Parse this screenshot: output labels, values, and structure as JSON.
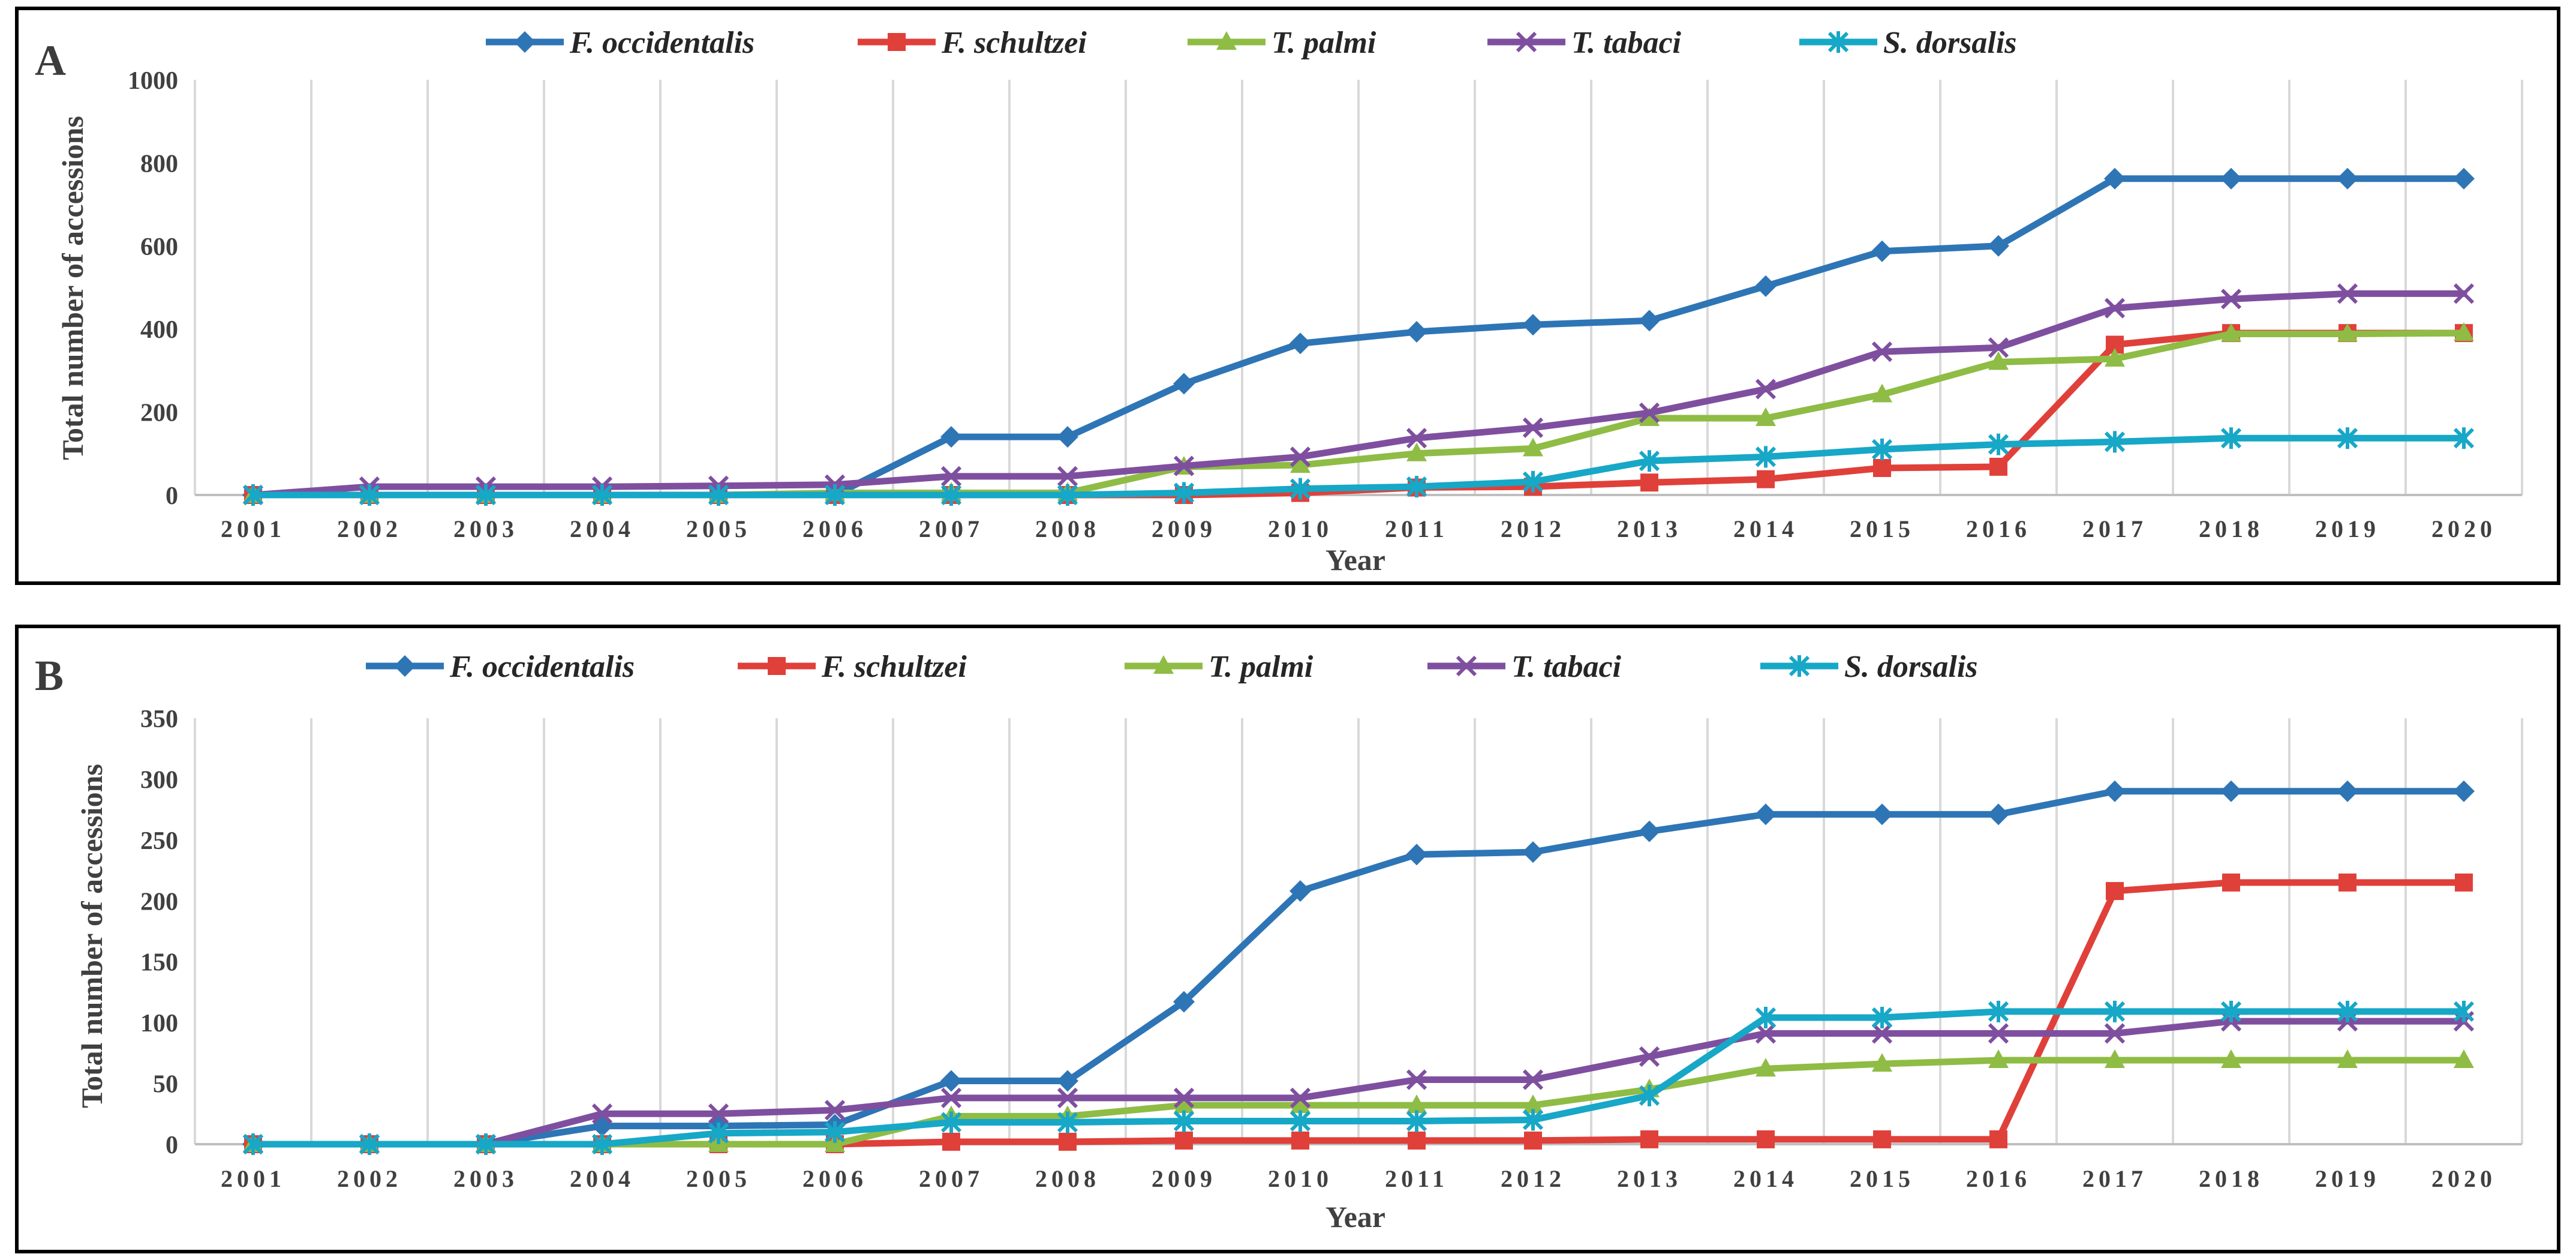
{
  "chart_data": [
    {
      "panel": "A",
      "type": "line",
      "title": "",
      "xlabel": "Year",
      "ylabel": "Total number of accessions",
      "categories": [
        "2001",
        "2002",
        "2003",
        "2004",
        "2005",
        "2006",
        "2007",
        "2008",
        "2009",
        "2010",
        "2011",
        "2012",
        "2013",
        "2014",
        "2015",
        "2016",
        "2017",
        "2018",
        "2019",
        "2020"
      ],
      "ylim": [
        0,
        1000
      ],
      "yticks": [
        "0",
        "200",
        "400",
        "600",
        "800",
        "1000"
      ],
      "grid": "vertical",
      "legend_position": "top",
      "series": [
        {
          "name": "F. occidentalis",
          "color": "#2e75b6",
          "marker": "diamond",
          "values": [
            0,
            0,
            0,
            0,
            0,
            0,
            140,
            140,
            268,
            365,
            393,
            410,
            420,
            503,
            587,
            600,
            762,
            762,
            762,
            762
          ]
        },
        {
          "name": "F. schultzei",
          "color": "#e0403a",
          "marker": "square",
          "values": [
            0,
            0,
            0,
            0,
            0,
            0,
            0,
            0,
            0,
            5,
            18,
            20,
            30,
            38,
            65,
            68,
            362,
            390,
            390,
            390
          ]
        },
        {
          "name": "T. palmi",
          "color": "#8fbc45",
          "marker": "triangle",
          "values": [
            0,
            0,
            0,
            0,
            0,
            5,
            5,
            5,
            68,
            72,
            100,
            112,
            185,
            185,
            242,
            320,
            328,
            388,
            388,
            390
          ]
        },
        {
          "name": "T. tabaci",
          "color": "#7f4f9f",
          "marker": "x",
          "values": [
            0,
            20,
            20,
            20,
            22,
            25,
            45,
            45,
            70,
            92,
            137,
            162,
            198,
            255,
            345,
            355,
            450,
            472,
            485,
            485
          ]
        },
        {
          "name": "S. dorsalis",
          "color": "#17a7c7",
          "marker": "asterisk",
          "values": [
            0,
            0,
            0,
            0,
            0,
            0,
            0,
            0,
            5,
            15,
            20,
            32,
            82,
            92,
            110,
            122,
            128,
            137,
            137,
            137
          ]
        }
      ]
    },
    {
      "panel": "B",
      "type": "line",
      "title": "",
      "xlabel": "Year",
      "ylabel": "Total  number of accessions",
      "categories": [
        "2001",
        "2002",
        "2003",
        "2004",
        "2005",
        "2006",
        "2007",
        "2008",
        "2009",
        "2010",
        "2011",
        "2012",
        "2013",
        "2014",
        "2015",
        "2016",
        "2017",
        "2018",
        "2019",
        "2020"
      ],
      "ylim": [
        0,
        350
      ],
      "yticks": [
        "0",
        "50",
        "100",
        "150",
        "200",
        "250",
        "300",
        "350"
      ],
      "grid": "vertical",
      "legend_position": "top",
      "series": [
        {
          "name": "F. occidentalis",
          "color": "#2e75b6",
          "marker": "diamond",
          "values": [
            0,
            0,
            0,
            15,
            15,
            16,
            52,
            52,
            117,
            208,
            238,
            240,
            257,
            271,
            271,
            271,
            290,
            290,
            290,
            290
          ]
        },
        {
          "name": "F. schultzei",
          "color": "#e0403a",
          "marker": "square",
          "values": [
            0,
            0,
            0,
            0,
            0,
            0,
            2,
            2,
            3,
            3,
            3,
            3,
            4,
            4,
            4,
            4,
            208,
            215,
            215,
            215
          ]
        },
        {
          "name": "T. palmi",
          "color": "#8fbc45",
          "marker": "triangle",
          "values": [
            0,
            0,
            0,
            0,
            0,
            0,
            23,
            23,
            32,
            32,
            32,
            32,
            45,
            62,
            66,
            69,
            69,
            69,
            69,
            69
          ]
        },
        {
          "name": "T. tabaci",
          "color": "#7f4f9f",
          "marker": "x",
          "values": [
            0,
            0,
            0,
            25,
            25,
            28,
            38,
            38,
            38,
            38,
            53,
            53,
            72,
            91,
            91,
            91,
            91,
            101,
            101,
            101
          ]
        },
        {
          "name": "S. dorsalis",
          "color": "#17a7c7",
          "marker": "asterisk",
          "values": [
            0,
            0,
            0,
            0,
            9,
            10,
            18,
            18,
            19,
            19,
            19,
            20,
            40,
            104,
            104,
            109,
            109,
            109,
            109,
            109
          ]
        }
      ]
    }
  ]
}
